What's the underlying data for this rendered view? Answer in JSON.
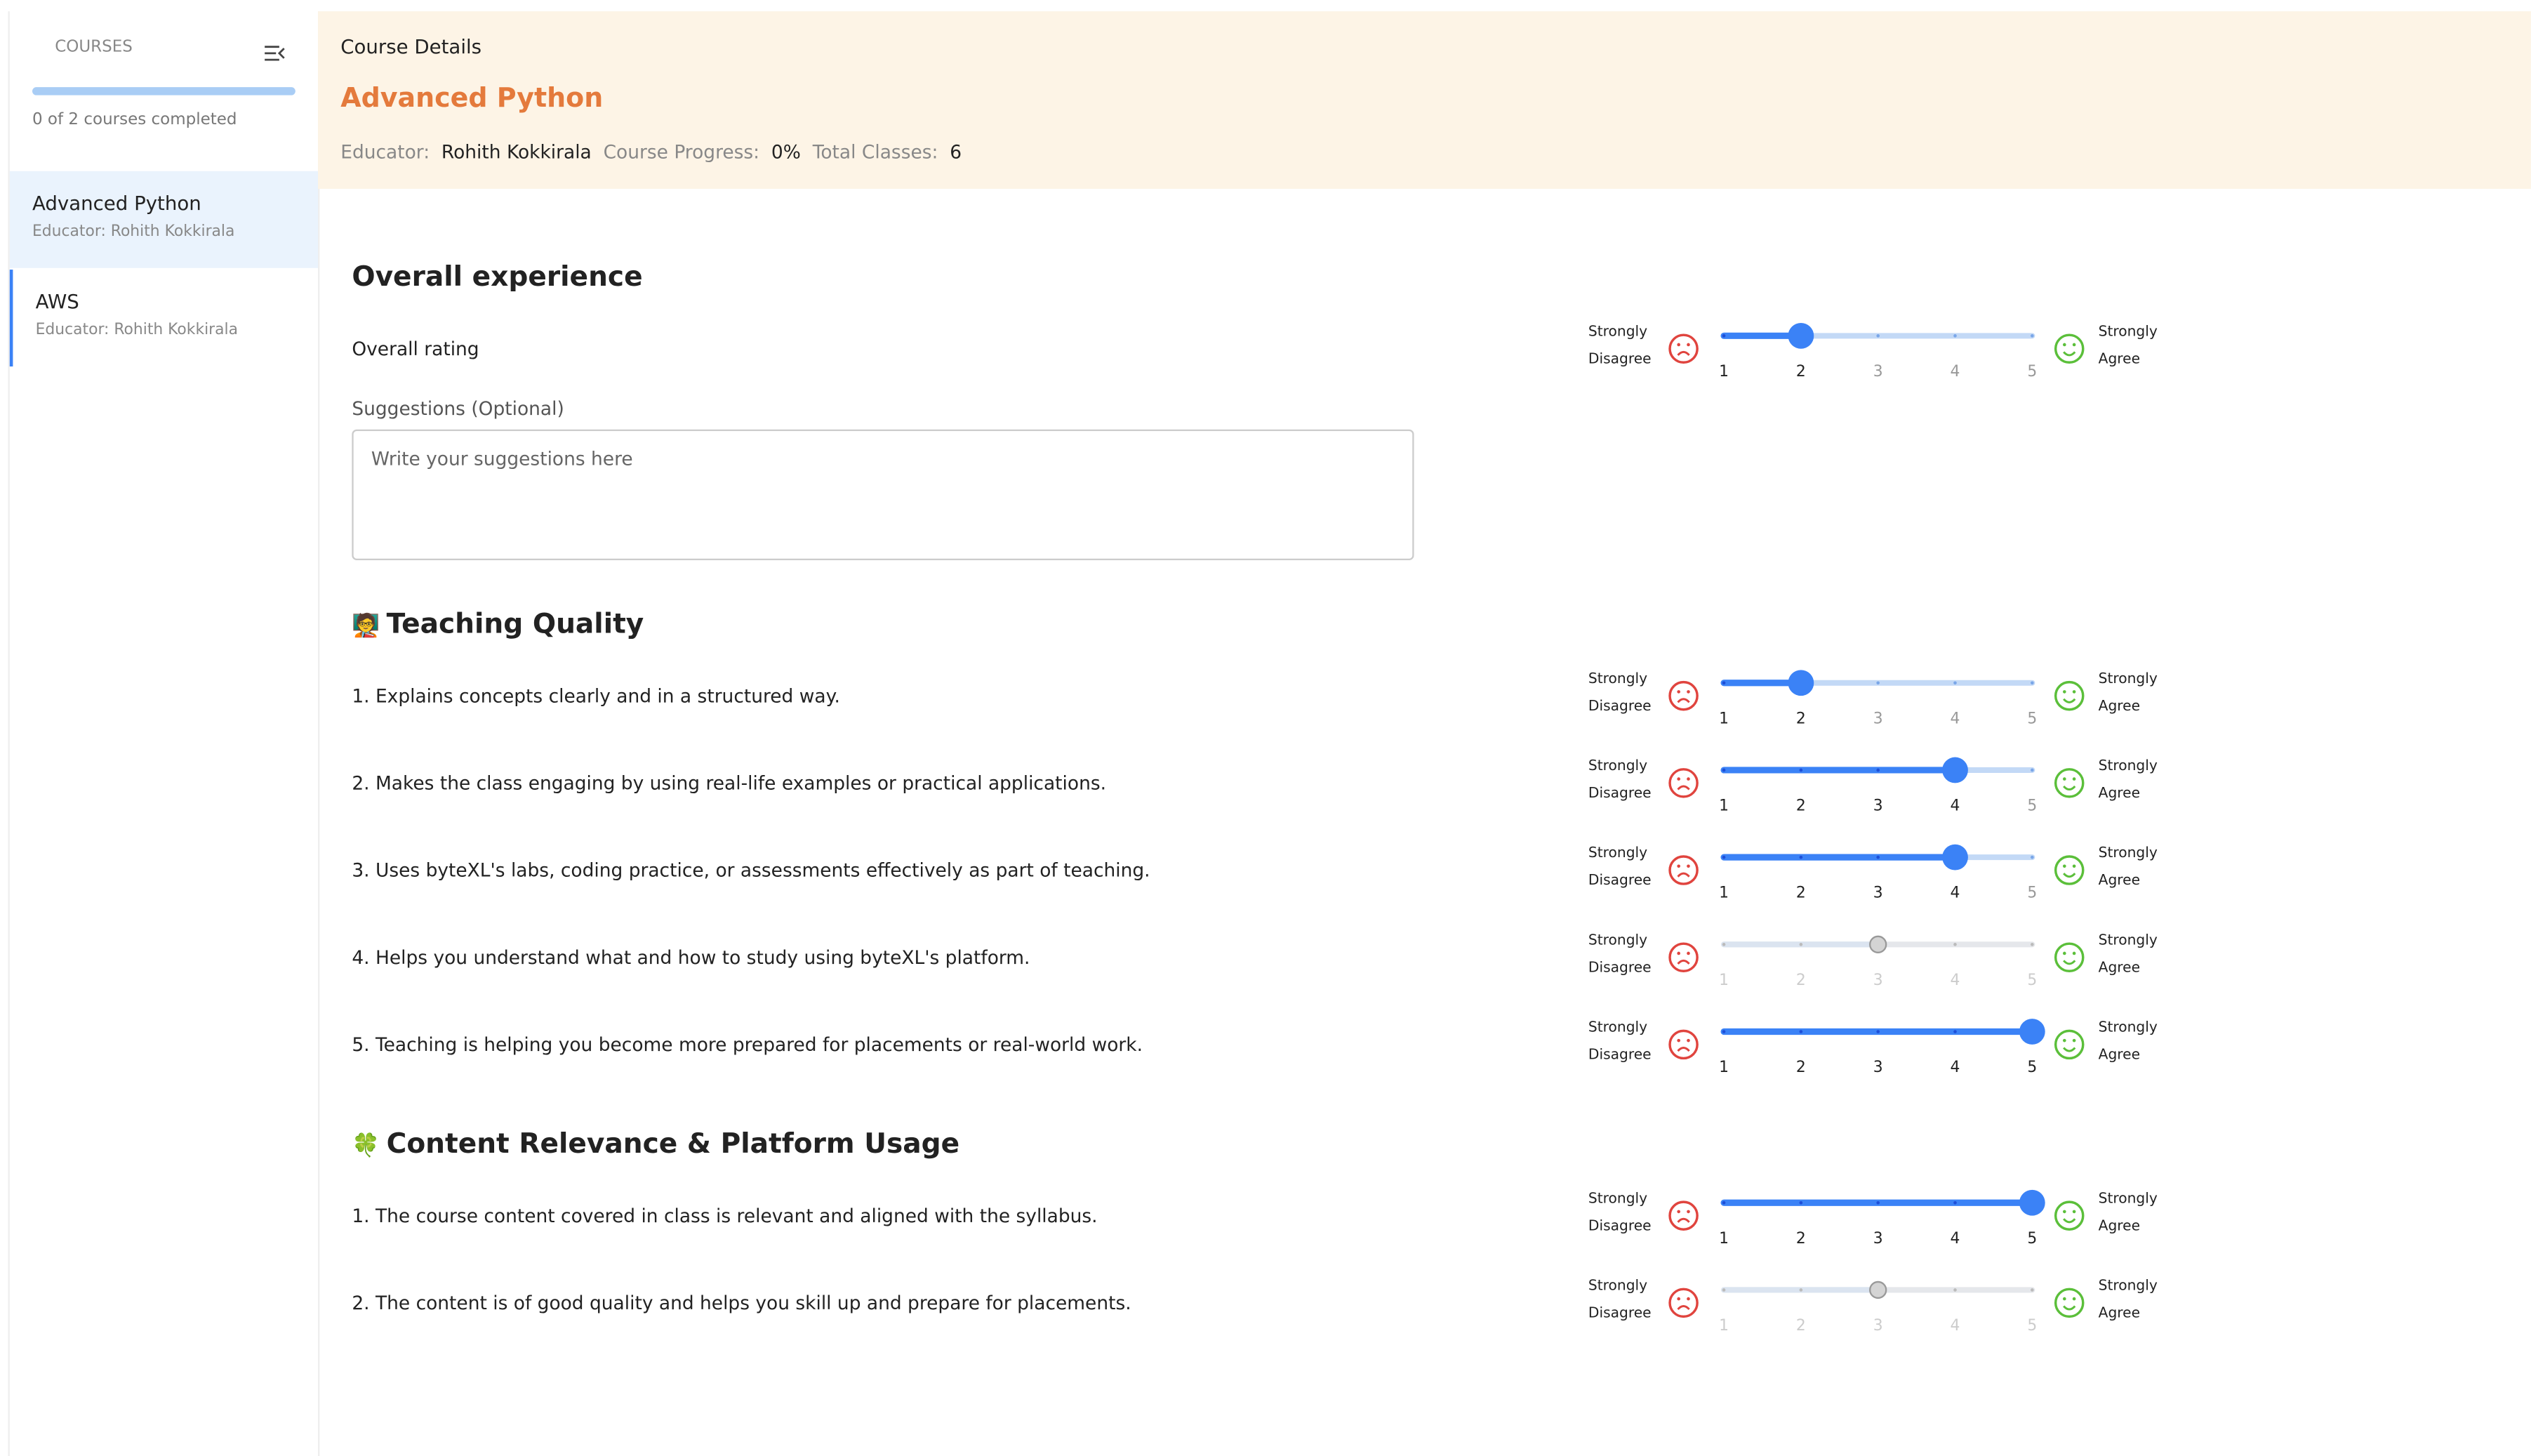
{
  "sidebar": {
    "title": "COURSES",
    "progress_text": "0 of 2 courses completed",
    "courses": [
      {
        "name": "Advanced Python",
        "educator": "Educator: Rohith Kokkirala"
      },
      {
        "name": "AWS",
        "educator": "Educator: Rohith Kokkirala"
      }
    ]
  },
  "header": {
    "label": "Course Details",
    "title": "Advanced Python",
    "educator_label": "Educator:",
    "educator": "Rohith Kokkirala",
    "progress_label": "Course Progress:",
    "progress": "0%",
    "classes_label": "Total Classes:",
    "classes": "6"
  },
  "scale": {
    "ticks": [
      1,
      2,
      3,
      4,
      5
    ],
    "low": "Strongly Disagree",
    "high": "Strongly Agree"
  },
  "sections": [
    {
      "title": "Overall experience",
      "questions": [
        {
          "text": "Overall rating",
          "value": 2,
          "answered": true
        }
      ],
      "suggestions_label": "Suggestions (Optional)",
      "suggestions_placeholder": "Write your suggestions here"
    },
    {
      "icon": "🧑‍🏫",
      "title": "Teaching Quality",
      "questions": [
        {
          "text": "1. Explains concepts clearly and in a structured way.",
          "value": 2,
          "answered": true
        },
        {
          "text": "2. Makes the class engaging by using real-life examples or practical applications.",
          "value": 4,
          "answered": true
        },
        {
          "text": "3. Uses byteXL's labs, coding practice, or assessments effectively as part of teaching.",
          "value": 4,
          "answered": true
        },
        {
          "text": "4. Helps you understand what and how to study using byteXL's platform.",
          "value": 3,
          "answered": false
        },
        {
          "text": "5. Teaching is helping you become more prepared for placements or real-world work.",
          "value": 5,
          "answered": true
        }
      ]
    },
    {
      "icon": "🍀",
      "title": "Content Relevance & Platform Usage",
      "questions": [
        {
          "text": "1. The course content covered in class is relevant and aligned with the syllabus.",
          "value": 5,
          "answered": true
        },
        {
          "text": "2. The content is of good quality and helps you skill up and prepare for placements.",
          "value": 3,
          "answered": false
        }
      ]
    }
  ]
}
